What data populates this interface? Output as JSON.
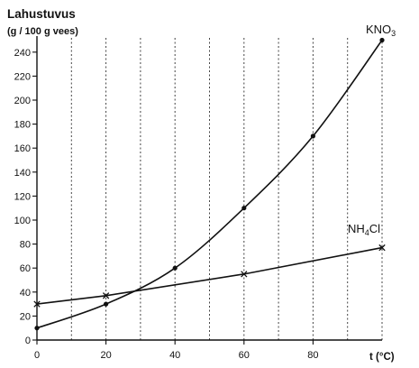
{
  "chart_data": {
    "type": "line",
    "title": "Lahustuvus",
    "subtitle": "(g / 100 g vees)",
    "xlabel": "t (°C)",
    "xlim": [
      0,
      100
    ],
    "ylim": [
      0,
      250
    ],
    "x_ticks": [
      0,
      20,
      40,
      60,
      80
    ],
    "y_ticks": [
      0,
      20,
      40,
      60,
      80,
      100,
      120,
      140,
      160,
      180,
      200,
      220,
      240
    ],
    "grid": "vertical dashed every 10 °C",
    "series": [
      {
        "name": "KNO",
        "name_subscript": "3",
        "marker": "dot",
        "curve": "smooth",
        "x": [
          0,
          20,
          40,
          60,
          80,
          100
        ],
        "y": [
          10,
          30,
          60,
          110,
          170,
          250
        ]
      },
      {
        "name": "NH",
        "name_subscript": "4",
        "name_suffix": "Cl",
        "marker": "cross",
        "curve": "straight",
        "x": [
          0,
          20,
          60,
          100
        ],
        "y": [
          30,
          37,
          55,
          77
        ]
      }
    ]
  }
}
